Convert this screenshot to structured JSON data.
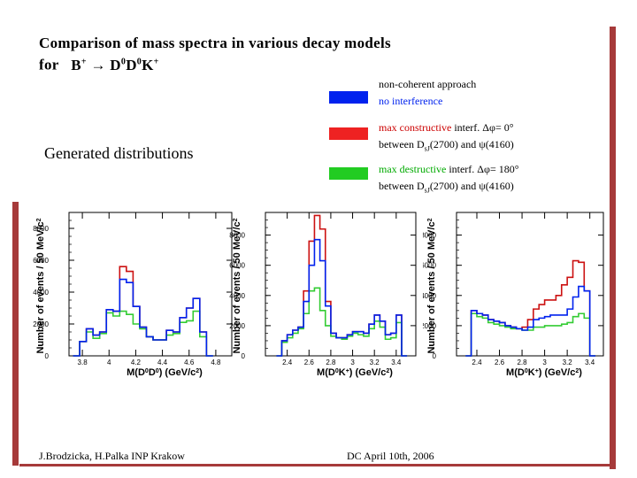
{
  "slide": {
    "title_line1": "Comparison of mass spectra in various decay models",
    "title_for": "for",
    "reaction_html": "B<sup>+</sup> &rarr; D<sup>0</sup>D<sup>0</sup>K<sup>+</sup>",
    "generated_label": "Generated distributions",
    "footer_left": "J.Brodzicka, H.Palka INP Krakow",
    "footer_right": "DC April 10th, 2006"
  },
  "legend": [
    {
      "color": "#0022ee",
      "text_html": "non-coherent approach<br><span style=\"color:#0022ee\">no interference</span>"
    },
    {
      "color": "#ee2222",
      "text_html": "<span style=\"color:#cc0000\">max constructive</span> interf. &Delta;&phi;= 0&deg;<br>between D<sub>sJ</sub>(2700) and &psi;(4160)"
    },
    {
      "color": "#22cc22",
      "text_html": "<span style=\"color:#00aa00\">max destructive</span> interf. &Delta;&phi;= 180&deg;<br>between D<sub>sJ</sub>(2700) and &psi;(4160)"
    }
  ],
  "colors": {
    "blue": "#0022ee",
    "red": "#cc1111",
    "green": "#33cc33",
    "accent": "#a63a3a"
  },
  "chart_data": [
    {
      "type": "bar",
      "xlabel_html": "M(D<tspan baseline-shift='super' font-size='7'>0</tspan>D<tspan baseline-shift='super' font-size='7'>0</tspan>) (GeV/c<tspan baseline-shift='super' font-size='7'>2</tspan>)",
      "ylabel": "Number of events / 50 MeV/c",
      "ylabel_sup": "2",
      "xlim": [
        3.7,
        4.92
      ],
      "ylim": [
        0,
        9000
      ],
      "xticks": [
        3.8,
        4.0,
        4.2,
        4.4,
        4.6,
        4.8
      ],
      "xtick_labels": [
        "3.8",
        "4",
        "4.2",
        "4.4",
        "4.6",
        "4.8"
      ],
      "yticks": [
        0,
        2000,
        4000,
        6000,
        8000
      ],
      "ytick_labels": [
        "0",
        "2000",
        "4000",
        "6000",
        "8000"
      ],
      "bin_start": 3.73,
      "bin_width": 0.05,
      "series": [
        {
          "name": "no interference",
          "color": "blue",
          "values": [
            0,
            900,
            1700,
            1300,
            1500,
            2900,
            2800,
            4800,
            4600,
            3100,
            1800,
            1200,
            1000,
            1000,
            1600,
            1500,
            2400,
            3000,
            3600,
            1500,
            0
          ]
        },
        {
          "name": "max constructive",
          "color": "red",
          "values": [
            0,
            900,
            1700,
            1300,
            1500,
            2900,
            2800,
            5600,
            5300,
            3100,
            1800,
            1200,
            1000,
            1000,
            1600,
            1500,
            2400,
            3000,
            3600,
            1500,
            0
          ]
        },
        {
          "name": "max destructive",
          "color": "green",
          "values": [
            0,
            900,
            1500,
            1100,
            1400,
            2700,
            2500,
            2800,
            2600,
            2000,
            1700,
            1200,
            1000,
            1000,
            1300,
            1400,
            2100,
            2200,
            2800,
            1200,
            0
          ]
        }
      ]
    },
    {
      "type": "bar",
      "xlabel_html": "M(D<tspan baseline-shift='super' font-size='7'>0</tspan>K<tspan baseline-shift='super' font-size='7'>+</tspan>) (GeV/c<tspan baseline-shift='super' font-size='7'>2</tspan>)",
      "ylabel": "Number of events / 50 MeV/c",
      "ylabel_sup": "2",
      "xlim": [
        2.2,
        3.58
      ],
      "ylim": [
        0,
        9500
      ],
      "xticks": [
        2.4,
        2.6,
        2.8,
        3.0,
        3.2,
        3.4
      ],
      "xtick_labels": [
        "2.4",
        "2.6",
        "2.8",
        "3",
        "3.2",
        "3.4"
      ],
      "yticks": [
        0,
        2000,
        4000,
        6000,
        8000
      ],
      "ytick_labels": [
        "0",
        "2000",
        "4000",
        "6000",
        "8000"
      ],
      "bin_start": 2.3,
      "bin_width": 0.05,
      "series": [
        {
          "name": "no interference",
          "color": "blue",
          "values": [
            0,
            1000,
            1400,
            1700,
            1900,
            3600,
            6000,
            7700,
            6300,
            3300,
            1500,
            1200,
            1200,
            1400,
            1600,
            1600,
            1500,
            2100,
            2700,
            2300,
            1400,
            1500,
            2700,
            0
          ]
        },
        {
          "name": "max constructive",
          "color": "red",
          "values": [
            0,
            1000,
            1400,
            1700,
            1900,
            4300,
            7600,
            9300,
            8400,
            3600,
            1500,
            1200,
            1200,
            1400,
            1600,
            1600,
            1500,
            2100,
            2700,
            2300,
            1400,
            1500,
            2700,
            0
          ]
        },
        {
          "name": "max destructive",
          "color": "green",
          "values": [
            0,
            900,
            1200,
            1500,
            1800,
            2800,
            4300,
            4500,
            3000,
            2000,
            1300,
            1200,
            1100,
            1300,
            1500,
            1400,
            1300,
            1800,
            2300,
            1900,
            1100,
            1200,
            2200,
            0
          ]
        }
      ]
    },
    {
      "type": "bar",
      "xlabel_html": "M(D<tspan baseline-shift='super' font-size='7'>0</tspan>K<tspan baseline-shift='super' font-size='7'>+</tspan>) (GeV/c<tspan baseline-shift='super' font-size='7'>2</tspan>)",
      "ylabel": "Number of events / 50 MeV/c",
      "ylabel_sup": "2",
      "xlim": [
        2.22,
        3.52
      ],
      "ylim": [
        0,
        9500
      ],
      "xticks": [
        2.4,
        2.6,
        2.8,
        3.0,
        3.2,
        3.4
      ],
      "xtick_labels": [
        "2.4",
        "2.6",
        "2.8",
        "3",
        "3.2",
        "3.4"
      ],
      "yticks": [
        0,
        2000,
        4000,
        6000,
        8000
      ],
      "ytick_labels": [
        "0",
        "2000",
        "4000",
        "6000",
        "8000"
      ],
      "bin_start": 2.3,
      "bin_width": 0.05,
      "series": [
        {
          "name": "no interference",
          "color": "blue",
          "values": [
            0,
            3000,
            2800,
            2700,
            2400,
            2300,
            2200,
            2000,
            1900,
            1800,
            1700,
            1900,
            2400,
            2500,
            2600,
            2700,
            2700,
            2700,
            3100,
            3900,
            4600,
            4300,
            0
          ]
        },
        {
          "name": "max constructive",
          "color": "red",
          "values": [
            0,
            3000,
            2800,
            2700,
            2400,
            2300,
            2200,
            2000,
            1900,
            1800,
            1900,
            2400,
            3100,
            3400,
            3700,
            3700,
            4000,
            4700,
            5200,
            6300,
            6200,
            4300,
            0
          ]
        },
        {
          "name": "max destructive",
          "color": "green",
          "values": [
            0,
            2800,
            2600,
            2500,
            2200,
            2100,
            2000,
            1900,
            1800,
            1800,
            1700,
            1700,
            1900,
            1900,
            2000,
            2000,
            2000,
            2100,
            2200,
            2600,
            2800,
            2500,
            0
          ]
        }
      ]
    }
  ]
}
